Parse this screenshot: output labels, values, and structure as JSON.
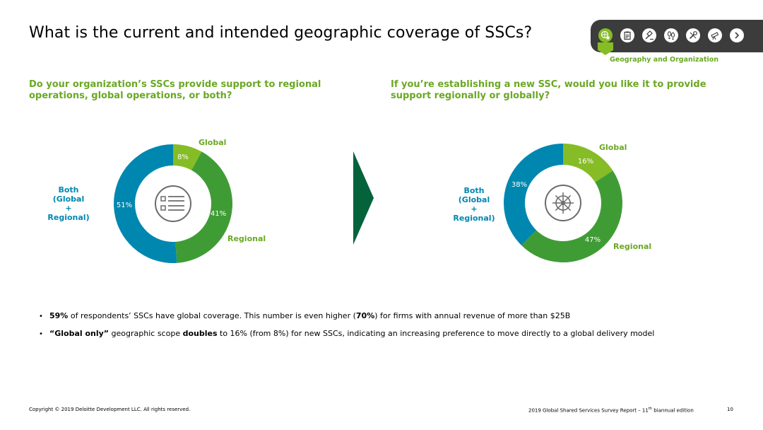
{
  "title": "What is the current and intended geographic coverage of SSCs?",
  "nav": {
    "section_label": "Geography and Organization",
    "icons": [
      "globe-org-icon",
      "clipboard-icon",
      "gavel-icon",
      "footprints-icon",
      "tools-icon",
      "telescope-icon"
    ],
    "next_icon": "chevron-right-icon"
  },
  "questions": {
    "left": "Do your organization’s SSCs provide support to regional operations, global operations, or both?",
    "right": "If you’re establishing a new SSC, would you like it to provide support regionally or globally?"
  },
  "colors": {
    "global": "#86bc25",
    "regional": "#3f9c35",
    "both": "#0087b0"
  },
  "chart_data": [
    {
      "type": "pie",
      "donut": true,
      "center_icon": "checklist-icon",
      "categories": [
        "Global",
        "Regional",
        "Both (Global + Regional)"
      ],
      "values": [
        8,
        41,
        51
      ],
      "value_labels": [
        "8%",
        "41%",
        "51%"
      ],
      "colors": [
        "#86bc25",
        "#3f9c35",
        "#0087b0"
      ]
    },
    {
      "type": "pie",
      "donut": true,
      "center_icon": "ship-wheel-icon",
      "categories": [
        "Global",
        "Regional",
        "Both (Global + Regional)"
      ],
      "values": [
        16,
        47,
        38
      ],
      "value_labels": [
        "16%",
        "47%",
        "38%"
      ],
      "colors": [
        "#86bc25",
        "#3f9c35",
        "#0087b0"
      ]
    }
  ],
  "labels": {
    "global": "Global",
    "regional": "Regional",
    "both_line1": "Both",
    "both_line2": "(Global",
    "both_line3": "+",
    "both_line4": "Regional)"
  },
  "bullets": [
    {
      "bold1": "59%",
      "text1": " of respondents’ SSCs have global coverage. This number is even higher (",
      "bold2": "70%",
      "text2": ") for firms with annual revenue of more than $25B"
    },
    {
      "bold1": "“Global only”",
      "text1": " geographic scope ",
      "bold2": "doubles",
      "text2": " to 16% (from 8%) for new SSCs, indicating an increasing preference to move directly to a global delivery model"
    }
  ],
  "footer": {
    "copyright": "Copyright © 2019 Deloitte Development LLC. All rights reserved.",
    "report_pre": "2019 Global Shared Services Survey Report – 11",
    "report_sup": "th",
    "report_post": " biannual edition",
    "page": "10"
  }
}
